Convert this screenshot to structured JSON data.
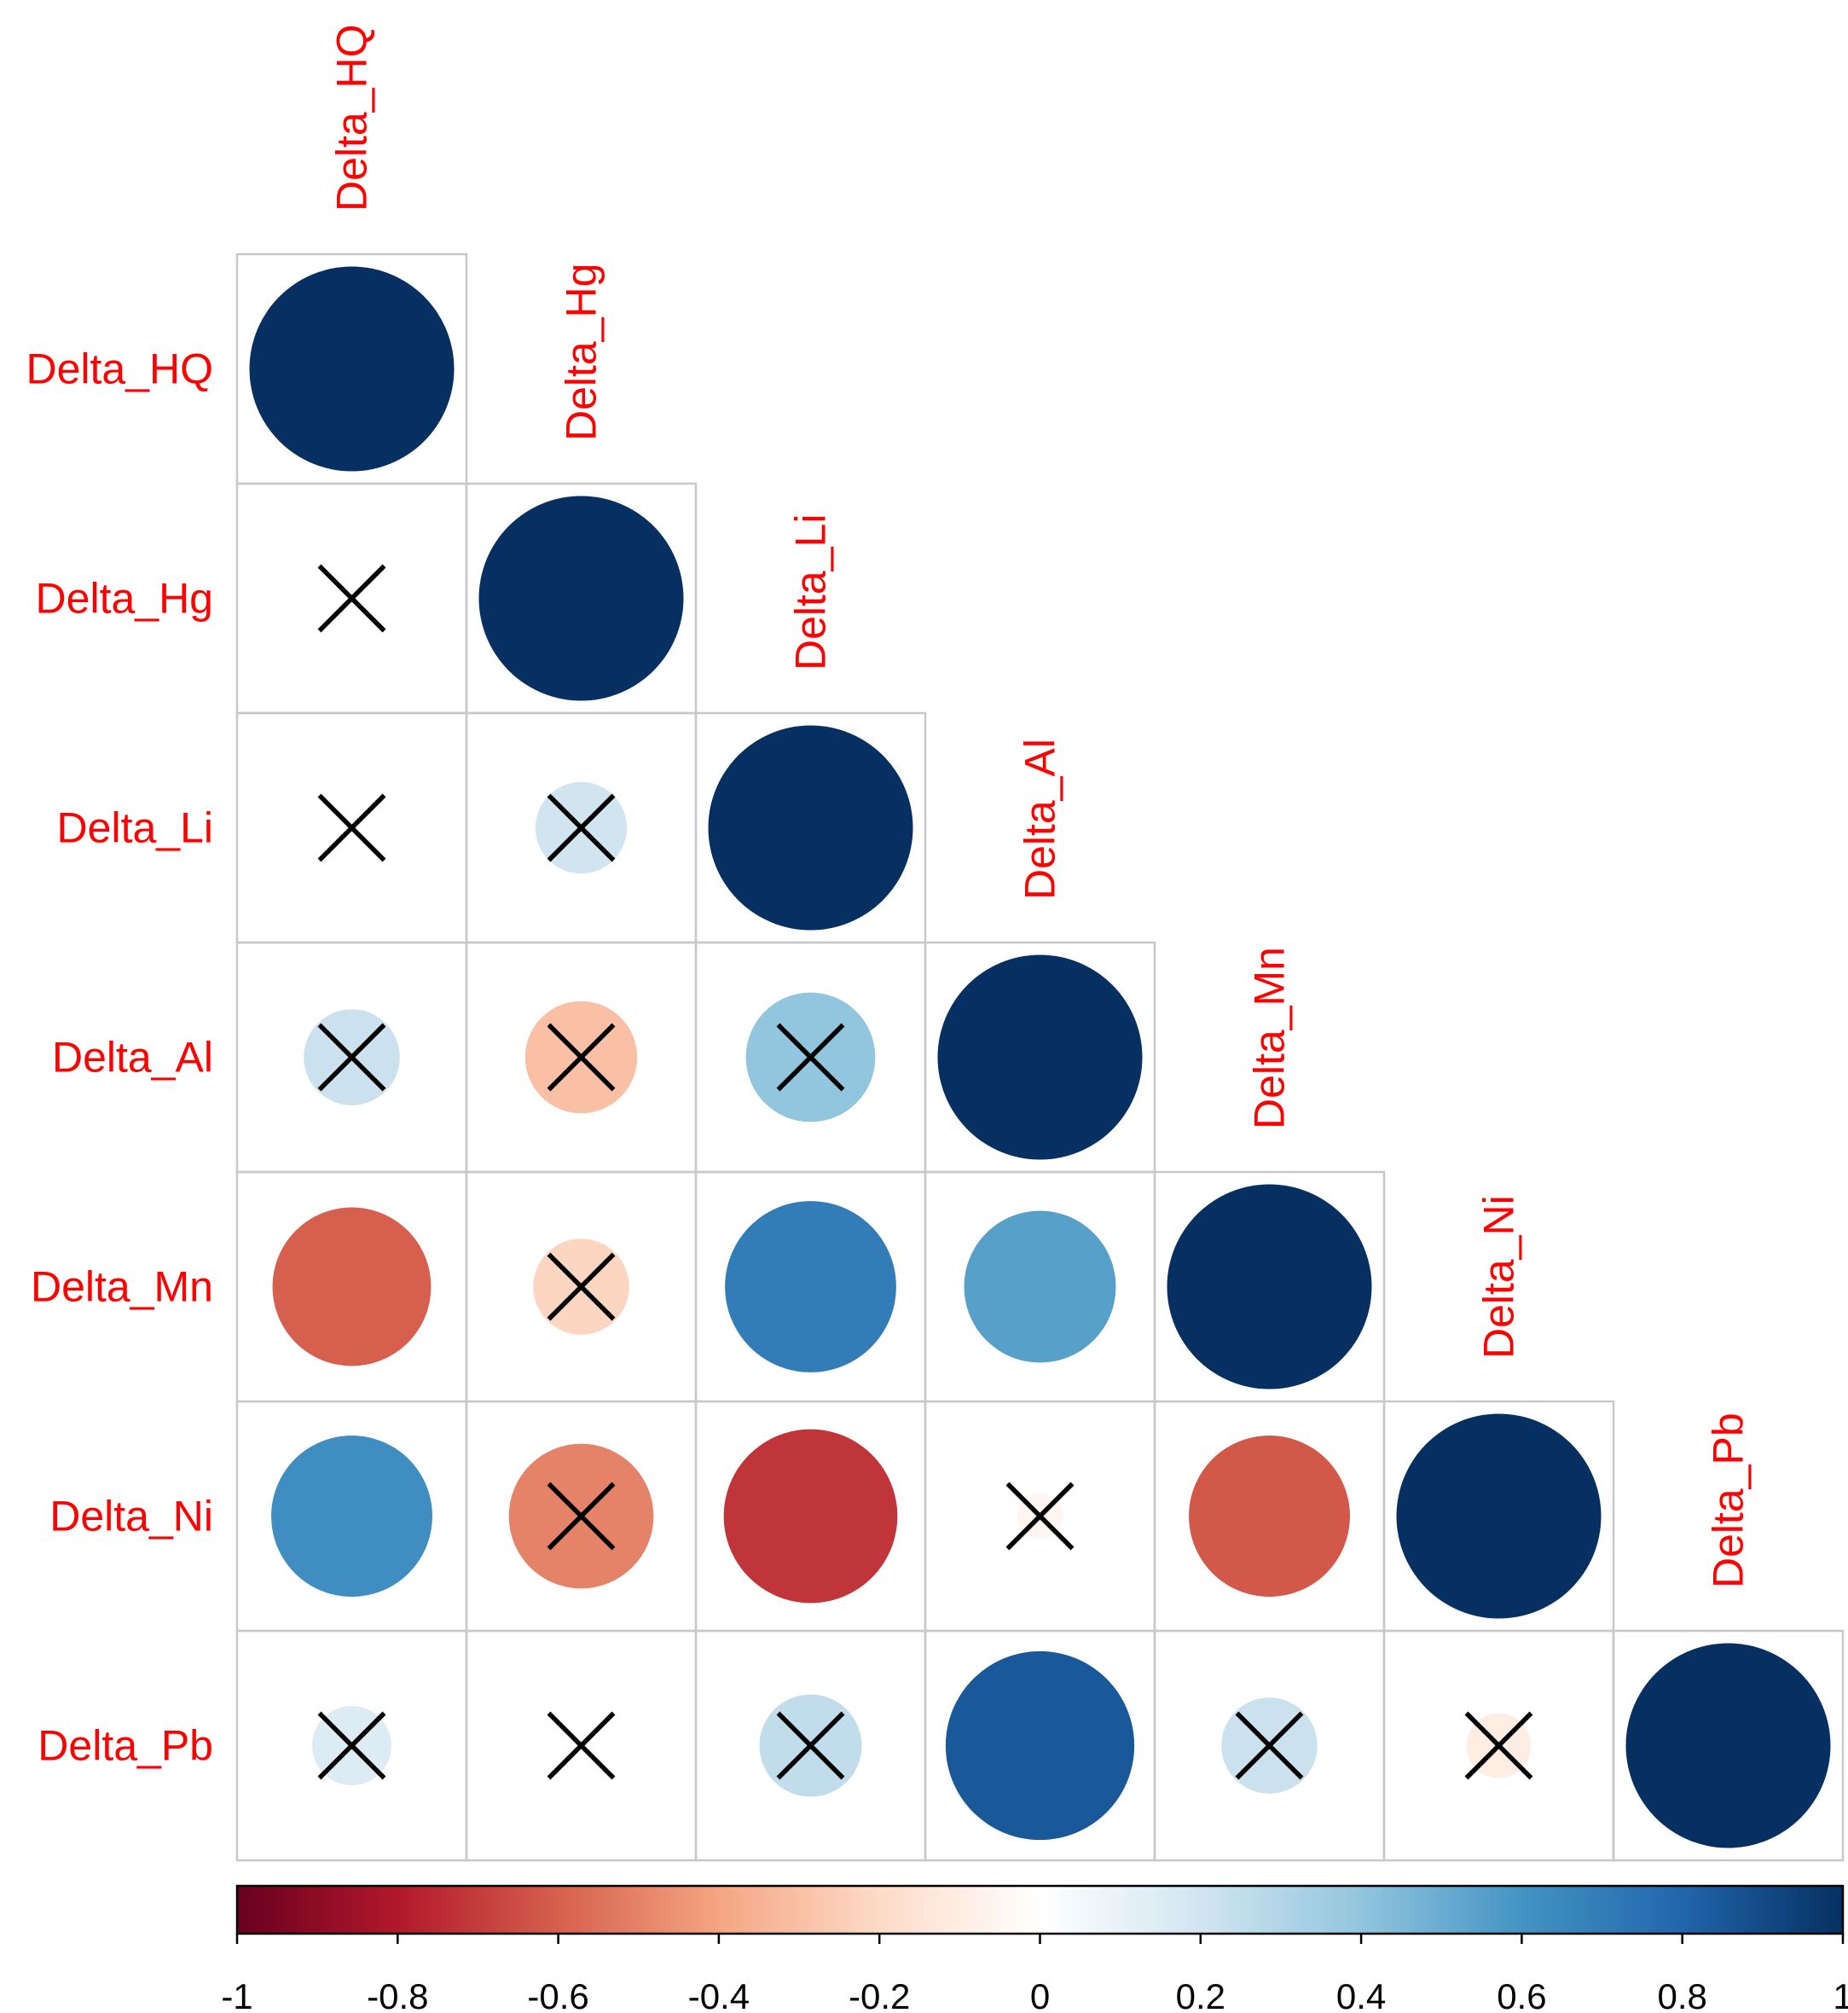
{
  "chart_data": {
    "type": "heatmap",
    "subtype": "correlation-matrix-lower-triangle",
    "glyph": "circle",
    "variables": [
      "Delta_HQ",
      "Delta_Hg",
      "Delta_Li",
      "Delta_Al",
      "Delta_Mn",
      "Delta_Ni",
      "Delta_Pb"
    ],
    "matrix": [
      [
        1.0,
        null,
        null,
        null,
        null,
        null,
        null
      ],
      [
        0.0,
        1.0,
        null,
        null,
        null,
        null,
        null
      ],
      [
        0.0,
        0.2,
        1.0,
        null,
        null,
        null,
        null
      ],
      [
        0.22,
        -0.3,
        0.4,
        1.0,
        null,
        null,
        null
      ],
      [
        -0.6,
        -0.22,
        0.7,
        0.55,
        1.0,
        null,
        null
      ],
      [
        0.62,
        -0.5,
        -0.72,
        -0.05,
        -0.62,
        1.0,
        null
      ],
      [
        0.15,
        0.0,
        0.25,
        0.85,
        0.22,
        -0.1,
        1.0
      ]
    ],
    "insignificant": [
      [
        false,
        false,
        false,
        false,
        false,
        false,
        false
      ],
      [
        true,
        false,
        false,
        false,
        false,
        false,
        false
      ],
      [
        true,
        true,
        false,
        false,
        false,
        false,
        false
      ],
      [
        true,
        true,
        true,
        false,
        false,
        false,
        false
      ],
      [
        false,
        true,
        false,
        false,
        false,
        false,
        false
      ],
      [
        false,
        true,
        false,
        true,
        false,
        false,
        false
      ],
      [
        true,
        true,
        true,
        false,
        true,
        true,
        false
      ]
    ],
    "colorbar": {
      "range": [
        -1,
        1
      ],
      "ticks": [
        "-1",
        "-0.8",
        "-0.6",
        "-0.4",
        "-0.2",
        "0",
        "0.2",
        "0.4",
        "0.6",
        "0.8",
        "1"
      ],
      "color_stops": [
        "#67001F",
        "#B2182B",
        "#D6604D",
        "#F4A582",
        "#FDDBC7",
        "#FFFFFF",
        "#D1E5F0",
        "#92C5DE",
        "#4393C3",
        "#2166AC",
        "#053061"
      ]
    },
    "label_color": "#ff0000",
    "grid_color": "#c8c8c8",
    "cross_color": "#000000"
  }
}
